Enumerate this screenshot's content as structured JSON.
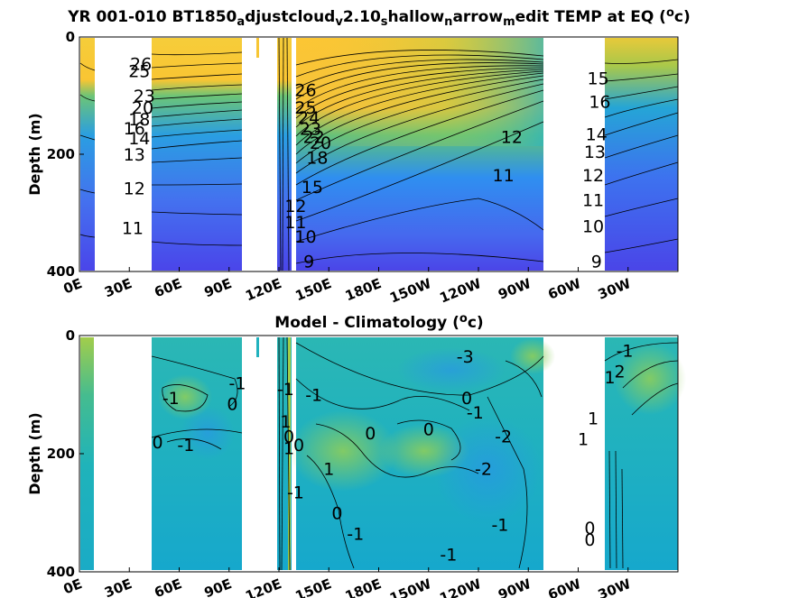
{
  "chart_data": [
    {
      "type": "heatmap",
      "name": "temp",
      "title": {
        "main": "YR 001-010 BT1850",
        "parts": [
          {
            "t": "a",
            "sub": true
          },
          {
            "t": "djustcloud",
            "sub": false
          },
          {
            "t": "v",
            "sub": true
          },
          {
            "t": "2.10",
            "sub": false
          },
          {
            "t": "s",
            "sub": true
          },
          {
            "t": "hallow",
            "sub": false
          },
          {
            "t": "n",
            "sub": true
          },
          {
            "t": "arrow",
            "sub": false
          },
          {
            "t": "m",
            "sub": true
          },
          {
            "t": "edit TEMP at EQ (",
            "sub": false
          },
          {
            "t": "o",
            "sup": true
          },
          {
            "t": "c)",
            "sub": false
          }
        ]
      },
      "ylabel": "Depth (m)",
      "ylim": [
        0,
        400
      ],
      "yticks": [
        "0",
        "200",
        "400"
      ],
      "xticks": [
        "0E",
        "30E",
        "60E",
        "90E",
        "120E",
        "150E",
        "180E",
        "150W",
        "120W",
        "90W",
        "60W",
        "30W"
      ],
      "colorrange": [
        9,
        28
      ],
      "contour_labels": [
        {
          "v": "26",
          "lon": 37,
          "d": 45
        },
        {
          "v": "25",
          "lon": 36,
          "d": 58
        },
        {
          "v": "23",
          "lon": 39,
          "d": 100
        },
        {
          "v": "20",
          "lon": 38,
          "d": 120
        },
        {
          "v": "18",
          "lon": 36,
          "d": 140
        },
        {
          "v": "16",
          "lon": 33,
          "d": 155
        },
        {
          "v": "14",
          "lon": 36,
          "d": 172
        },
        {
          "v": "13",
          "lon": 33,
          "d": 200
        },
        {
          "v": "12",
          "lon": 33,
          "d": 258
        },
        {
          "v": "11",
          "lon": 32,
          "d": 325
        },
        {
          "v": "26",
          "lon": 136,
          "d": 90
        },
        {
          "v": "25",
          "lon": 136,
          "d": 120
        },
        {
          "v": "24",
          "lon": 138,
          "d": 137
        },
        {
          "v": "23",
          "lon": 139,
          "d": 156
        },
        {
          "v": "22",
          "lon": 141,
          "d": 170
        },
        {
          "v": "20",
          "lon": 145,
          "d": 180
        },
        {
          "v": "18",
          "lon": 143,
          "d": 205
        },
        {
          "v": "15",
          "lon": 140,
          "d": 255
        },
        {
          "v": "12",
          "lon": 130,
          "d": 288
        },
        {
          "v": "11",
          "lon": 130,
          "d": 315
        },
        {
          "v": "10",
          "lon": 136,
          "d": 340
        },
        {
          "v": "9",
          "lon": 138,
          "d": 382
        },
        {
          "v": "12",
          "lon": 260,
          "d": 170
        },
        {
          "v": "11",
          "lon": 255,
          "d": 235
        },
        {
          "v": "15",
          "lon": 312,
          "d": 70
        },
        {
          "v": "16",
          "lon": 313,
          "d": 110
        },
        {
          "v": "14",
          "lon": 311,
          "d": 165
        },
        {
          "v": "13",
          "lon": 310,
          "d": 195
        },
        {
          "v": "12",
          "lon": 309,
          "d": 235
        },
        {
          "v": "11",
          "lon": 309,
          "d": 278
        },
        {
          "v": "10",
          "lon": 309,
          "d": 322
        },
        {
          "v": "9",
          "lon": 311,
          "d": 382
        }
      ]
    },
    {
      "type": "heatmap",
      "name": "diff",
      "title": {
        "main": "Model - Climatology (",
        "parts": [
          {
            "t": "o",
            "sup": true
          },
          {
            "t": "c)",
            "sub": false
          }
        ]
      },
      "ylabel": "Depth (m)",
      "ylim": [
        0,
        400
      ],
      "yticks": [
        "0",
        "200",
        "400"
      ],
      "xticks": [
        "0E",
        "30E",
        "60E",
        "90E",
        "120E",
        "150E",
        "180E",
        "150W",
        "120W",
        "90W",
        "60W",
        "30W"
      ],
      "colorrange": [
        -3,
        3
      ],
      "contour_labels": [
        {
          "v": "-1",
          "lon": 55,
          "d": 105
        },
        {
          "v": "-1",
          "lon": 95,
          "d": 80
        },
        {
          "v": "0",
          "lon": 92,
          "d": 115
        },
        {
          "v": "0",
          "lon": 47,
          "d": 180
        },
        {
          "v": "-1",
          "lon": 64,
          "d": 185
        },
        {
          "v": "-1",
          "lon": 124,
          "d": 90
        },
        {
          "v": "1",
          "lon": 124,
          "d": 145
        },
        {
          "v": "0",
          "lon": 126,
          "d": 170
        },
        {
          "v": "1",
          "lon": 126,
          "d": 190
        },
        {
          "v": "0",
          "lon": 132,
          "d": 185
        },
        {
          "v": "-1",
          "lon": 141,
          "d": 100
        },
        {
          "v": "1",
          "lon": 150,
          "d": 225
        },
        {
          "v": "0",
          "lon": 175,
          "d": 165
        },
        {
          "v": "-1",
          "lon": 130,
          "d": 265
        },
        {
          "v": "0",
          "lon": 155,
          "d": 300
        },
        {
          "v": "-1",
          "lon": 166,
          "d": 335
        },
        {
          "v": "0",
          "lon": 210,
          "d": 158
        },
        {
          "v": "-3",
          "lon": 232,
          "d": 35
        },
        {
          "v": "0",
          "lon": 233,
          "d": 105
        },
        {
          "v": "-1",
          "lon": 238,
          "d": 130
        },
        {
          "v": "-2",
          "lon": 255,
          "d": 170
        },
        {
          "v": "-2",
          "lon": 243,
          "d": 225
        },
        {
          "v": "-1",
          "lon": 253,
          "d": 320
        },
        {
          "v": "-1",
          "lon": 222,
          "d": 370
        },
        {
          "v": "-1",
          "lon": 328,
          "d": 25
        },
        {
          "v": "1",
          "lon": 319,
          "d": 70
        },
        {
          "v": "2",
          "lon": 325,
          "d": 60
        },
        {
          "v": "1",
          "lon": 309,
          "d": 140
        },
        {
          "v": "1",
          "lon": 303,
          "d": 175
        },
        {
          "v": "0",
          "lon": 307,
          "d": 325
        },
        {
          "v": "0",
          "lon": 307,
          "d": 345
        }
      ]
    }
  ]
}
